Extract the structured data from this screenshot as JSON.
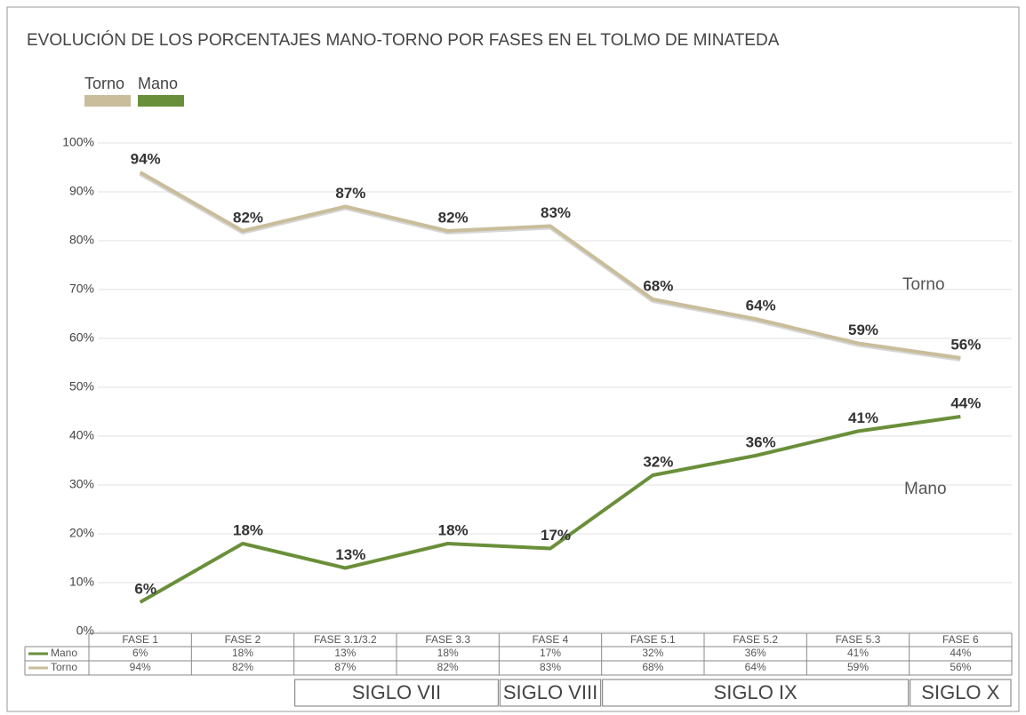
{
  "chart_data": {
    "type": "line",
    "title": "EVOLUCIÓN DE LOS PORCENTAJES MANO-TORNO POR FASES EN EL TOLMO DE MINATEDA",
    "categories": [
      "FASE 1",
      "FASE 2",
      "FASE 3.1/3.2",
      "FASE 3.3",
      "FASE 4",
      "FASE 5.1",
      "FASE 5.2",
      "FASE 5.3",
      "FASE 6"
    ],
    "series": [
      {
        "name": "Mano",
        "color": "#6a8f3a",
        "values": [
          6,
          18,
          13,
          18,
          17,
          32,
          36,
          41,
          44
        ],
        "value_labels": [
          "6%",
          "18%",
          "13%",
          "18%",
          "17%",
          "32%",
          "36%",
          "41%",
          "44%"
        ]
      },
      {
        "name": "Torno",
        "color": "#c9bd9b",
        "values": [
          94,
          82,
          87,
          82,
          83,
          68,
          64,
          59,
          56
        ],
        "value_labels": [
          "94%",
          "82%",
          "87%",
          "82%",
          "83%",
          "68%",
          "64%",
          "59%",
          "56%"
        ]
      }
    ],
    "ylim": [
      0,
      100
    ],
    "yticks": [
      {
        "value": 0,
        "label": "0%"
      },
      {
        "value": 10,
        "label": "10%"
      },
      {
        "value": 20,
        "label": "20%"
      },
      {
        "value": 30,
        "label": "30%"
      },
      {
        "value": 40,
        "label": "40%"
      },
      {
        "value": 50,
        "label": "50%"
      },
      {
        "value": 60,
        "label": "60%"
      },
      {
        "value": 70,
        "label": "70%"
      },
      {
        "value": 80,
        "label": "80%"
      },
      {
        "value": 90,
        "label": "90%"
      },
      {
        "value": 100,
        "label": "100%"
      }
    ],
    "grid": true,
    "periods": [
      {
        "label": "SIGLO VII",
        "first": "FASE 3.1/3.2",
        "last": "FASE 3.3"
      },
      {
        "label": "SIGLO VIII",
        "first": "FASE 4",
        "last": "FASE 4"
      },
      {
        "label": "SIGLO IX",
        "first": "FASE 5.1",
        "last": "FASE 5.3"
      },
      {
        "label": "SIGLO X",
        "first": "FASE 6",
        "last": "FASE 6"
      }
    ]
  }
}
